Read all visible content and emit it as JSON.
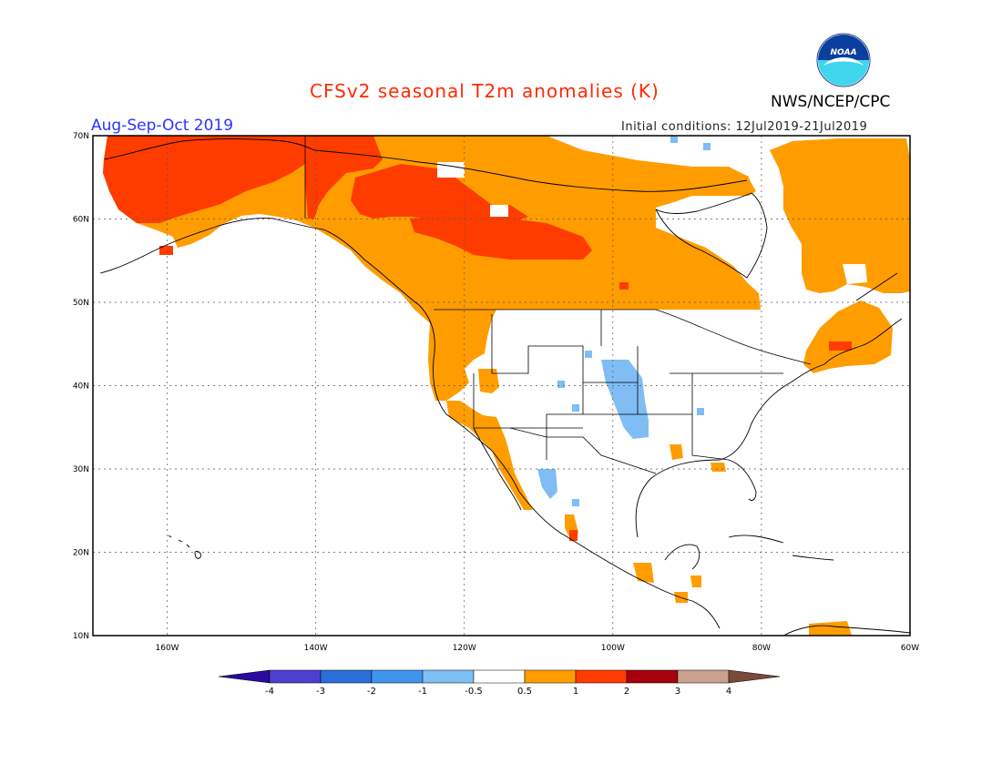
{
  "header": {
    "title": "CFSv2 seasonal T2m anomalies (K)",
    "agency": "NWS/NCEP/CPC",
    "season": "Aug-Sep-Oct 2019",
    "initial_conditions": "Initial conditions: 12Jul2019-21Jul2019",
    "logo_text": "NOAA"
  },
  "map": {
    "extent": {
      "lon_min": -170,
      "lon_max": -60,
      "lat_min": 10,
      "lat_max": 70
    },
    "lat_ticks": [
      {
        "value": 70,
        "label": "70N"
      },
      {
        "value": 60,
        "label": "60N"
      },
      {
        "value": 50,
        "label": "50N"
      },
      {
        "value": 40,
        "label": "40N"
      },
      {
        "value": 30,
        "label": "30N"
      },
      {
        "value": 20,
        "label": "20N"
      },
      {
        "value": 10,
        "label": "10N"
      }
    ],
    "lon_ticks": [
      {
        "value": -160,
        "label": "160W"
      },
      {
        "value": -140,
        "label": "140W"
      },
      {
        "value": -120,
        "label": "120W"
      },
      {
        "value": -100,
        "label": "100W"
      },
      {
        "value": -80,
        "label": "80W"
      },
      {
        "value": -60,
        "label": "60W"
      }
    ],
    "gridlines": "dotted"
  },
  "colorbar": {
    "labels": [
      "-4",
      "-3",
      "-2",
      "-1",
      "-0.5",
      "0.5",
      "1",
      "2",
      "3",
      "4"
    ],
    "colors": [
      "#2b0a9e",
      "#4f3fd0",
      "#2a6fd8",
      "#3f95ee",
      "#7fbff7",
      "#ffffff",
      "#ff9d00",
      "#ff3c00",
      "#a5000c",
      "#c9a18e",
      "#7a4a3a"
    ]
  },
  "colors": {
    "orange": "#ff9d00",
    "red": "#ff3c00",
    "lightblue": "#80bdf5"
  }
}
